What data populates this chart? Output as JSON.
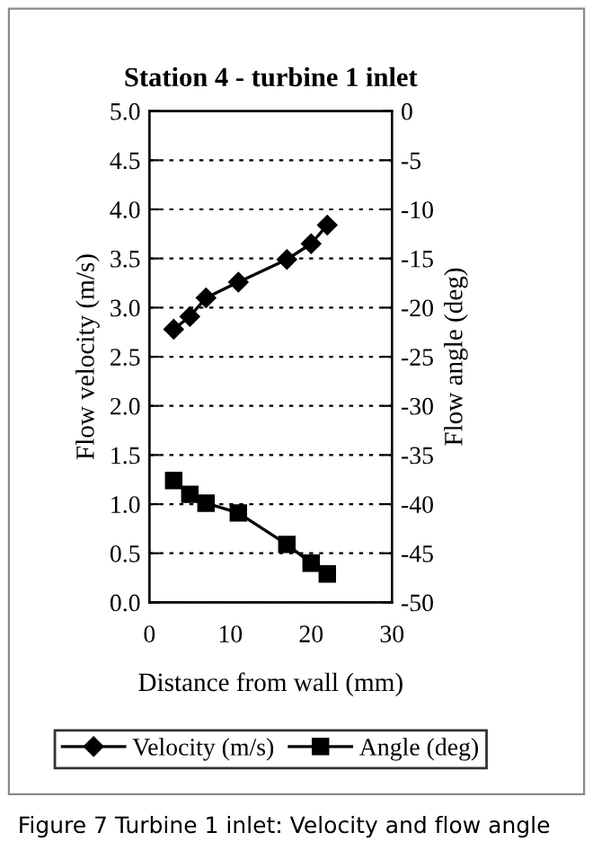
{
  "chart_data": {
    "type": "line",
    "title": "Station 4 - turbine 1 inlet",
    "xlabel": "Distance from wall (mm)",
    "ylabel": "Flow velocity (m/s)",
    "y2label": "Flow angle (deg)",
    "x": [
      3,
      5,
      7,
      11,
      17,
      20,
      22
    ],
    "series": [
      {
        "name": "Velocity (m/s)",
        "color": "#000000",
        "marker": "diamond",
        "values": [
          2.78,
          2.91,
          3.1,
          3.26,
          3.49,
          3.65,
          3.84
        ]
      },
      {
        "name": "Angle (deg)",
        "color": "#000000",
        "marker": "square",
        "axis": "y2",
        "values": [
          -37.6,
          -39.0,
          -39.9,
          -40.9,
          -44.1,
          -46.0,
          -47.1
        ]
      }
    ],
    "xlim": [
      0,
      30
    ],
    "xticks": [
      0,
      10,
      20,
      30
    ],
    "ylim": [
      0,
      5
    ],
    "yticks": [
      {
        "value": 0,
        "label": "0.0"
      },
      0.5,
      {
        "value": 1,
        "label": "1.0"
      },
      1.5,
      {
        "value": 2,
        "label": "2.0"
      },
      2.5,
      {
        "value": 3,
        "label": "3.0"
      },
      3.5,
      {
        "value": 4,
        "label": "4.0"
      },
      4.5,
      {
        "value": 5,
        "label": "5.0"
      }
    ],
    "y2lim": [
      -50,
      0
    ],
    "y2ticks": [
      -50,
      -45,
      -40,
      -35,
      -30,
      -25,
      -20,
      -15,
      -10,
      -5,
      0
    ],
    "grid": "y",
    "legend": "bottom",
    "line_style": "solid",
    "annotations": [
      "Figure 7 Turbine 1 inlet: Velocity and flow angle"
    ]
  }
}
